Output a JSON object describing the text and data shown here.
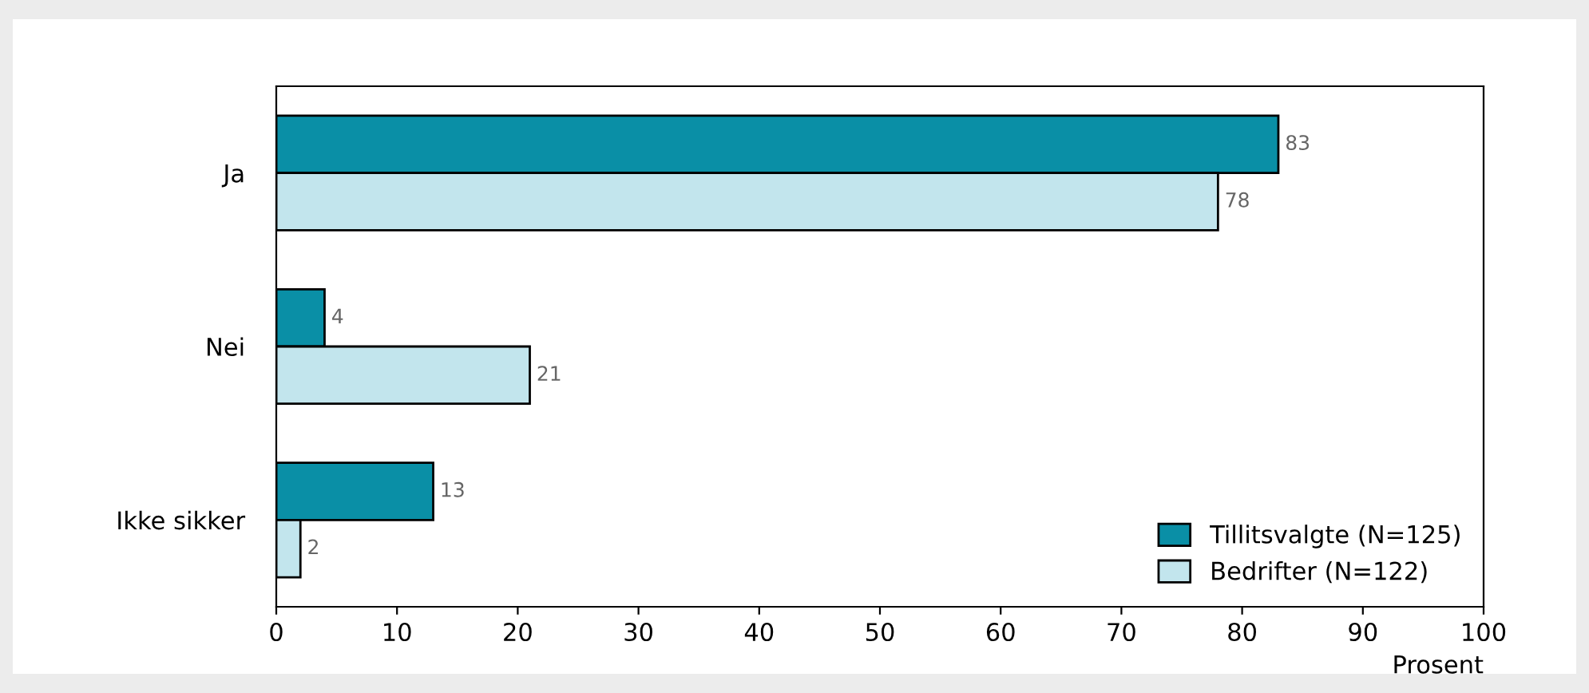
{
  "chart_data": {
    "type": "bar",
    "orientation": "horizontal",
    "xlabel": "Prosent",
    "categories": [
      "Ja",
      "Nei",
      "Ikke sikker"
    ],
    "series": [
      {
        "name": "Tillitsvalgte (N=125)",
        "color": "#0a8fa6",
        "values": [
          83,
          4,
          13
        ]
      },
      {
        "name": "Bedrifter (N=122)",
        "color": "#c2e5ed",
        "values": [
          78,
          21,
          2
        ]
      }
    ],
    "xlim": [
      0,
      100
    ],
    "xticks": [
      0,
      10,
      20,
      30,
      40,
      50,
      60,
      70,
      80,
      90,
      100
    ],
    "data_labels": true,
    "legend": "bottom right",
    "grid": false
  }
}
